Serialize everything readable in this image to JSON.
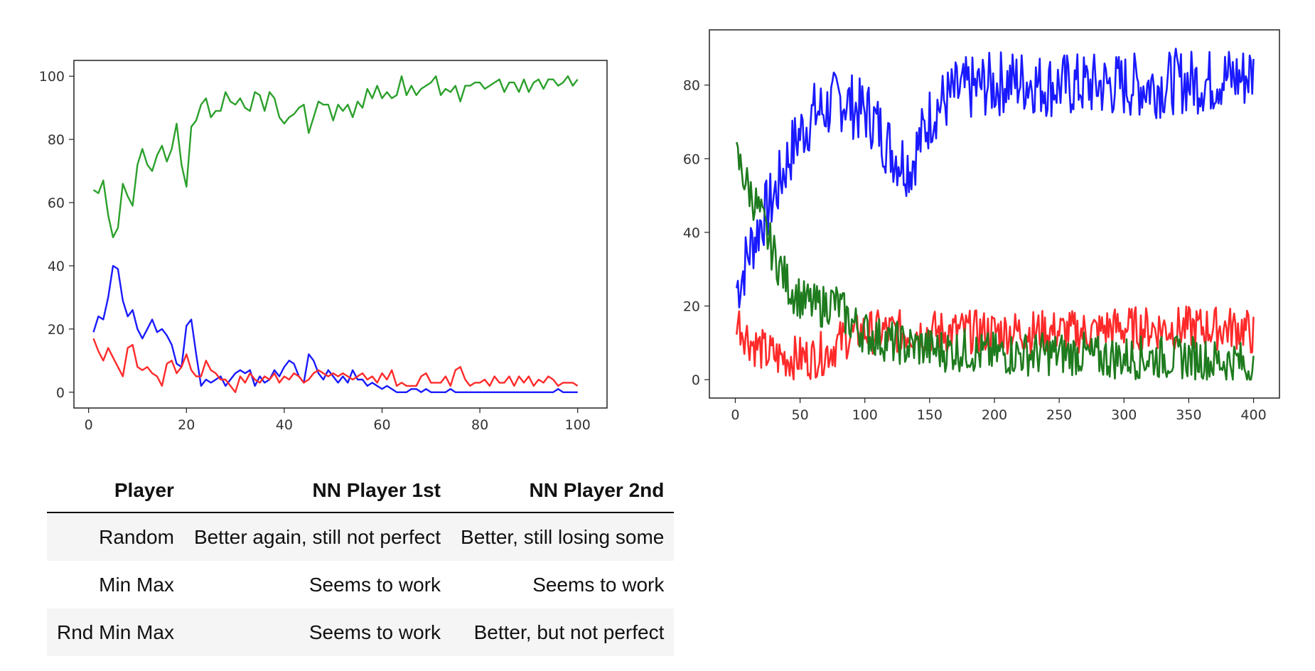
{
  "chart_data": [
    {
      "type": "line",
      "x": [
        1,
        2,
        3,
        4,
        5,
        6,
        7,
        8,
        9,
        10,
        11,
        12,
        13,
        14,
        15,
        16,
        17,
        18,
        19,
        20,
        21,
        22,
        23,
        24,
        25,
        26,
        27,
        28,
        29,
        30,
        31,
        32,
        33,
        34,
        35,
        36,
        37,
        38,
        39,
        40,
        41,
        42,
        43,
        44,
        45,
        46,
        47,
        48,
        49,
        50,
        51,
        52,
        53,
        54,
        55,
        56,
        57,
        58,
        59,
        60,
        61,
        62,
        63,
        64,
        65,
        66,
        67,
        68,
        69,
        70,
        71,
        72,
        73,
        74,
        75,
        76,
        77,
        78,
        79,
        80,
        81,
        82,
        83,
        84,
        85,
        86,
        87,
        88,
        89,
        90,
        91,
        92,
        93,
        94,
        95,
        96,
        97,
        98,
        99,
        100
      ],
      "xlim": [
        -3,
        106
      ],
      "ylim": [
        -5,
        105
      ],
      "xticks": [
        0,
        20,
        40,
        60,
        80,
        100
      ],
      "yticks": [
        0,
        20,
        40,
        60,
        80,
        100
      ],
      "series": [
        {
          "color": "#2ca02c",
          "values": [
            64,
            63,
            67,
            56,
            49,
            52,
            66,
            62,
            59,
            72,
            77,
            72,
            70,
            75,
            78,
            73,
            77,
            85,
            72,
            65,
            84,
            86,
            91,
            93,
            87,
            89,
            89,
            95,
            92,
            91,
            93,
            90,
            89,
            95,
            94,
            89,
            95,
            93,
            87,
            85,
            87,
            88,
            90,
            91,
            82,
            87,
            92,
            91,
            91,
            86,
            91,
            89,
            91,
            87,
            92,
            90,
            96,
            93,
            97,
            93,
            95,
            93,
            94,
            100,
            94,
            97,
            94,
            96,
            97,
            98,
            100,
            94,
            96,
            95,
            97,
            92,
            97,
            97,
            98,
            98,
            96,
            97,
            98,
            99,
            95,
            98,
            98,
            95,
            99,
            95,
            98,
            99,
            96,
            99,
            99,
            97,
            98,
            100,
            97,
            99
          ]
        },
        {
          "color": "#1a1aff",
          "values": [
            19,
            24,
            23,
            30,
            40,
            39,
            29,
            24,
            26,
            20,
            17,
            20,
            23,
            19,
            20,
            18,
            15,
            9,
            8,
            21,
            23,
            12,
            2,
            4,
            3,
            4,
            5,
            2,
            4,
            6,
            7,
            6,
            7,
            2,
            5,
            3,
            4,
            7,
            5,
            8,
            10,
            9,
            5,
            3,
            12,
            10,
            6,
            4,
            7,
            5,
            3,
            5,
            3,
            7,
            4,
            4,
            2,
            3,
            2,
            1,
            2,
            1,
            0,
            0,
            0,
            1,
            1,
            0,
            1,
            0,
            0,
            0,
            0,
            1,
            0,
            0,
            0,
            0,
            0,
            0,
            0,
            0,
            0,
            0,
            0,
            0,
            0,
            0,
            0,
            0,
            0,
            0,
            0,
            0,
            0,
            1,
            0,
            0,
            0,
            0
          ]
        },
        {
          "color": "#ff2a2a",
          "values": [
            17,
            13,
            10,
            14,
            11,
            8,
            5,
            14,
            15,
            8,
            7,
            8,
            6,
            5,
            2,
            9,
            10,
            6,
            8,
            12,
            7,
            5,
            5,
            10,
            7,
            6,
            4,
            4,
            2,
            0,
            5,
            3,
            6,
            4,
            3,
            5,
            4,
            6,
            3,
            5,
            4,
            6,
            5,
            3,
            4,
            6,
            7,
            6,
            5,
            6,
            5,
            6,
            5,
            4,
            5,
            6,
            4,
            5,
            3,
            6,
            4,
            7,
            2,
            3,
            2,
            2,
            2,
            5,
            6,
            3,
            3,
            3,
            5,
            2,
            7,
            8,
            4,
            2,
            3,
            3,
            4,
            2,
            5,
            3,
            3,
            5,
            2,
            5,
            3,
            5,
            2,
            4,
            3,
            5,
            4,
            2,
            3,
            3,
            3,
            2
          ]
        }
      ]
    },
    {
      "type": "line",
      "x_start": 1,
      "x_end": 400,
      "xlim": [
        -20,
        420
      ],
      "ylim": [
        -5,
        95
      ],
      "xticks": [
        0,
        50,
        100,
        150,
        200,
        250,
        300,
        350,
        400
      ],
      "yticks": [
        0,
        20,
        40,
        60,
        80
      ],
      "series": [
        {
          "color": "#1a1aff",
          "values": [
            25,
            28,
            33,
            37,
            40,
            44,
            46,
            49,
            52,
            56,
            60,
            63,
            66,
            68,
            70,
            72,
            73,
            73,
            74,
            75,
            76,
            76,
            75,
            74,
            73,
            73,
            72,
            70,
            68,
            65,
            63,
            61,
            60,
            59,
            58,
            62,
            65,
            69,
            72,
            74,
            75,
            76,
            77,
            78,
            78,
            79,
            79,
            79,
            80,
            80,
            80,
            80,
            81,
            81,
            81,
            81,
            81,
            81,
            81,
            80,
            80,
            80,
            80,
            80,
            80,
            80,
            80,
            80,
            80,
            80,
            80,
            80,
            80,
            80,
            80,
            80,
            80,
            80,
            80,
            80,
            80,
            80,
            80,
            80,
            80,
            81,
            81,
            81,
            81,
            81,
            81,
            81,
            81,
            81,
            82,
            82,
            82,
            82,
            82,
            82,
            83,
            83
          ]
        },
        {
          "color": "#ff2a2a",
          "values": [
            17,
            14,
            12,
            10,
            9,
            8,
            7,
            7,
            6,
            6,
            6,
            6,
            6,
            6,
            6,
            6,
            7,
            7,
            8,
            9,
            10,
            11,
            12,
            12,
            13,
            13,
            13,
            13,
            13,
            13,
            13,
            13,
            13,
            13,
            13,
            13,
            13,
            13,
            13,
            13,
            13,
            13,
            13,
            13,
            13,
            13,
            13,
            13,
            13,
            13,
            13,
            13,
            13,
            13,
            13,
            13,
            13,
            13,
            13,
            13,
            13,
            13,
            13,
            13,
            13,
            13,
            13,
            13,
            13,
            13,
            13,
            13,
            14,
            14,
            14,
            14,
            14,
            14,
            14,
            14,
            14,
            14,
            14,
            14,
            14,
            14,
            14,
            14,
            14,
            14,
            14,
            14,
            14,
            14,
            14,
            14,
            14,
            14,
            14,
            14,
            13,
            12
          ]
        },
        {
          "color": "#1e7b1e",
          "values": [
            60,
            57,
            53,
            50,
            47,
            43,
            39,
            35,
            32,
            29,
            26,
            24,
            23,
            21,
            21,
            20,
            20,
            20,
            21,
            21,
            20,
            18,
            16,
            15,
            14,
            13,
            12,
            12,
            11,
            11,
            10,
            10,
            10,
            9,
            9,
            9,
            9,
            9,
            8,
            8,
            8,
            8,
            8,
            8,
            8,
            8,
            8,
            7,
            7,
            7,
            7,
            7,
            7,
            7,
            7,
            7,
            7,
            7,
            7,
            7,
            7,
            7,
            7,
            7,
            7,
            7,
            7,
            7,
            7,
            6,
            6,
            6,
            6,
            6,
            6,
            6,
            6,
            6,
            6,
            6,
            6,
            6,
            6,
            6,
            6,
            6,
            6,
            6,
            6,
            6,
            6,
            6,
            5,
            5,
            5,
            5,
            5,
            5,
            5,
            4,
            3,
            3
          ]
        }
      ]
    }
  ],
  "table": {
    "headers": [
      "Player",
      "NN Player 1st",
      "NN Player 2nd"
    ],
    "rows": [
      [
        "Random",
        "Better again, still not perfect",
        "Better, still losing some"
      ],
      [
        "Min Max",
        "Seems to work",
        "Seems to work"
      ],
      [
        "Rnd Min Max",
        "Seems to work",
        "Better, but not perfect"
      ]
    ]
  }
}
